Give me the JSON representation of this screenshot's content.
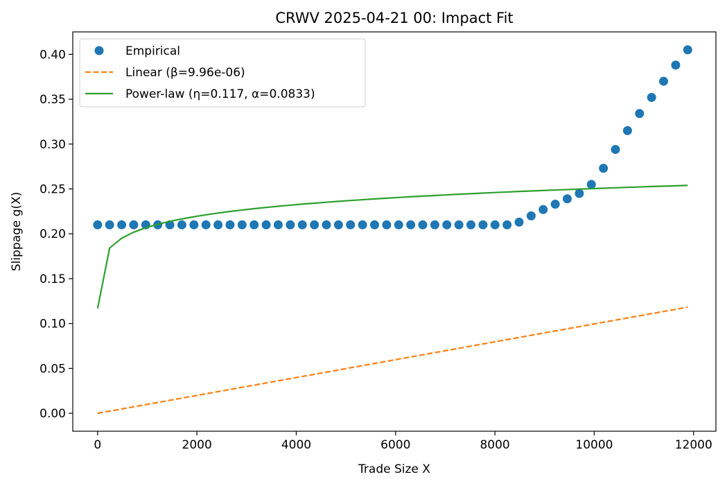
{
  "chart_data": {
    "type": "line",
    "title": "CRWV 2025-04-21 00: Impact Fit",
    "xlabel": "Trade Size X",
    "ylabel": "Slippage g(X)",
    "xlim": [
      -500,
      12450
    ],
    "ylim": [
      -0.02,
      0.425
    ],
    "xticks": [
      0,
      2000,
      4000,
      6000,
      8000,
      10000,
      12000
    ],
    "xtick_labels": [
      "0",
      "2000",
      "4000",
      "6000",
      "8000",
      "10000",
      "12000"
    ],
    "yticks": [
      0.0,
      0.05,
      0.1,
      0.15,
      0.2,
      0.25,
      0.3,
      0.35,
      0.4
    ],
    "ytick_labels": [
      "0.00",
      "0.05",
      "0.10",
      "0.15",
      "0.20",
      "0.25",
      "0.30",
      "0.35",
      "0.40"
    ],
    "grid": false,
    "legend_position": "top-left",
    "series": [
      {
        "name": "Empirical",
        "style": "markers",
        "color": "#1f77b4",
        "x": [
          0,
          242,
          485,
          727,
          970,
          1212,
          1455,
          1697,
          1940,
          2182,
          2425,
          2667,
          2910,
          3152,
          3395,
          3637,
          3880,
          4122,
          4365,
          4607,
          4850,
          5092,
          5335,
          5577,
          5820,
          6062,
          6305,
          6547,
          6790,
          7032,
          7275,
          7517,
          7760,
          8002,
          8245,
          8487,
          8730,
          8972,
          9215,
          9457,
          9700,
          9942,
          10185,
          10427,
          10670,
          10912,
          11155,
          11397,
          11640,
          11882
        ],
        "y": [
          0.21,
          0.21,
          0.21,
          0.21,
          0.21,
          0.21,
          0.21,
          0.21,
          0.21,
          0.21,
          0.21,
          0.21,
          0.21,
          0.21,
          0.21,
          0.21,
          0.21,
          0.21,
          0.21,
          0.21,
          0.21,
          0.21,
          0.21,
          0.21,
          0.21,
          0.21,
          0.21,
          0.21,
          0.21,
          0.21,
          0.21,
          0.21,
          0.21,
          0.21,
          0.21,
          0.213,
          0.22,
          0.227,
          0.233,
          0.239,
          0.245,
          0.255,
          0.273,
          0.294,
          0.315,
          0.334,
          0.352,
          0.37,
          0.388,
          0.405
        ]
      },
      {
        "name": "Linear (β=9.96e-06)",
        "style": "dashed",
        "color": "#ff7f0e",
        "x": [
          0,
          11882
        ],
        "y": [
          0.0,
          0.1183
        ]
      },
      {
        "name": "Power-law (η=0.117, α=0.0833)",
        "style": "solid",
        "color": "#2ca02c",
        "x": [
          1,
          242,
          485,
          727,
          970,
          1212,
          1455,
          1697,
          1940,
          2182,
          2425,
          2667,
          2910,
          3152,
          3395,
          3637,
          3880,
          4122,
          4365,
          4607,
          4850,
          5092,
          5335,
          5577,
          5820,
          6062,
          6305,
          6547,
          6790,
          7032,
          7275,
          7517,
          7760,
          8002,
          8245,
          8487,
          8730,
          8972,
          9215,
          9457,
          9700,
          9942,
          10185,
          10427,
          10670,
          10912,
          11155,
          11397,
          11640,
          11882
        ],
        "y": [
          0.117,
          0.1841,
          0.1951,
          0.2018,
          0.2068,
          0.2106,
          0.2139,
          0.2166,
          0.219,
          0.2212,
          0.2231,
          0.2249,
          0.2265,
          0.228,
          0.2294,
          0.2307,
          0.2319,
          0.2331,
          0.2341,
          0.2352,
          0.2362,
          0.2371,
          0.238,
          0.2389,
          0.2397,
          0.2405,
          0.2413,
          0.242,
          0.2427,
          0.2434,
          0.2441,
          0.2447,
          0.2454,
          0.246,
          0.2466,
          0.2472,
          0.2477,
          0.2483,
          0.2488,
          0.2493,
          0.2498,
          0.2503,
          0.2508,
          0.2513,
          0.2518,
          0.2522,
          0.2527,
          0.2531,
          0.2535,
          0.254
        ]
      }
    ]
  }
}
